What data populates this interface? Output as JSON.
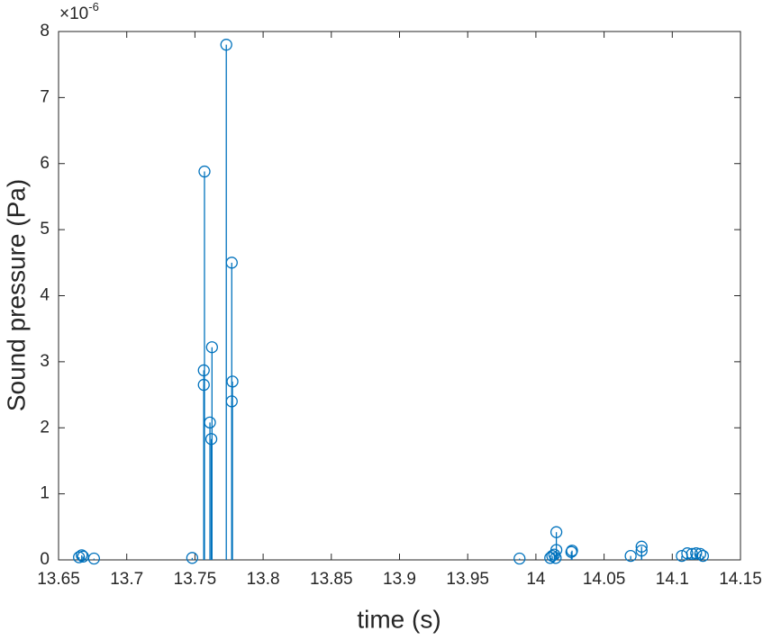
{
  "chart_data": {
    "type": "stem",
    "x_label": "time (s)",
    "y_label": "Sound pressure (Pa)",
    "y_multiplier": "×10",
    "y_multiplier_exponent": "-6",
    "color": "#0072bd",
    "x": [
      13.665,
      13.667,
      13.668,
      13.676,
      13.748,
      13.757,
      13.7565,
      13.7565,
      13.761,
      13.762,
      13.7625,
      13.773,
      13.777,
      13.7775,
      13.777,
      13.988,
      14.0105,
      14.012,
      14.0135,
      14.0145,
      14.015,
      14.015,
      14.026,
      14.0265,
      14.0695,
      14.0775,
      14.0775,
      14.107,
      14.111,
      14.1145,
      14.1175,
      14.1205,
      14.1225
    ],
    "values": [
      0.04,
      0.07,
      0.05,
      0.02,
      0.03,
      5.88,
      2.87,
      2.65,
      2.08,
      1.83,
      3.22,
      7.8,
      4.5,
      2.7,
      2.4,
      0.02,
      0.03,
      0.06,
      0.08,
      0.03,
      0.15,
      0.42,
      0.12,
      0.14,
      0.06,
      0.2,
      0.14,
      0.06,
      0.1,
      0.09,
      0.1,
      0.09,
      0.06
    ],
    "xlim": [
      13.65,
      14.15
    ],
    "xticks": [
      13.65,
      13.7,
      13.75,
      13.8,
      13.85,
      13.9,
      13.95,
      14,
      14.05,
      14.1,
      14.15
    ],
    "ylim": [
      0,
      8
    ],
    "yticks": [
      0,
      1,
      2,
      3,
      4,
      5,
      6,
      7,
      8
    ]
  }
}
